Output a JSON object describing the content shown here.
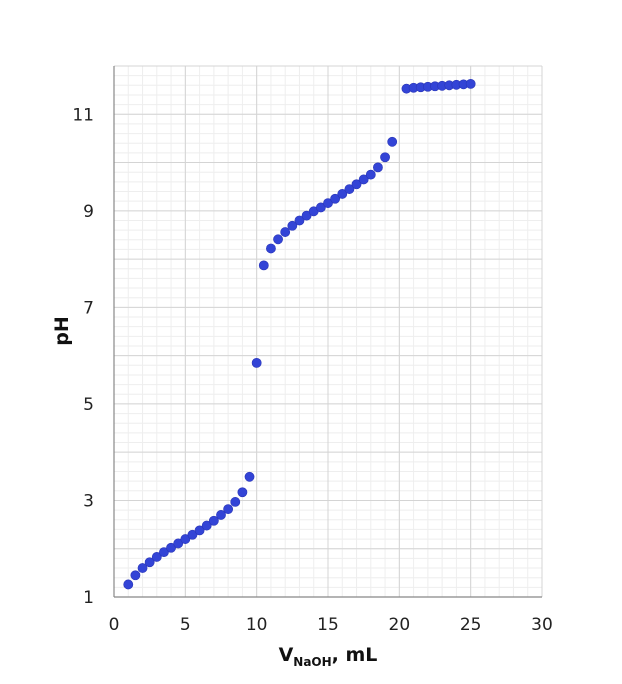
{
  "chart_data": {
    "type": "scatter",
    "title": "",
    "xlabel": {
      "main": "V",
      "subscript": "NaOH",
      "suffix": ", mL"
    },
    "ylabel": "pH",
    "xlim": [
      0,
      30
    ],
    "ylim": [
      1,
      12
    ],
    "x_ticks": [
      "0",
      "5",
      "10",
      "15",
      "20",
      "25",
      "30"
    ],
    "y_ticks": [
      "1",
      "3",
      "5",
      "7",
      "9",
      "11"
    ],
    "grid": true,
    "legend": "none",
    "marker_color": "#3344d6",
    "series": [
      {
        "points": [
          [
            1.0,
            1.26
          ],
          [
            1.5,
            1.45
          ],
          [
            2.0,
            1.6
          ],
          [
            2.5,
            1.72
          ],
          [
            3.0,
            1.83
          ],
          [
            3.5,
            1.93
          ],
          [
            4.0,
            2.02
          ],
          [
            4.5,
            2.11
          ],
          [
            5.0,
            2.2
          ],
          [
            5.5,
            2.29
          ],
          [
            6.0,
            2.38
          ],
          [
            6.5,
            2.48
          ],
          [
            7.0,
            2.58
          ],
          [
            7.5,
            2.7
          ],
          [
            8.0,
            2.82
          ],
          [
            8.5,
            2.97
          ],
          [
            9.0,
            3.17
          ],
          [
            9.5,
            3.49
          ],
          [
            10.0,
            5.85
          ],
          [
            10.5,
            7.87
          ],
          [
            11.0,
            8.22
          ],
          [
            11.5,
            8.41
          ],
          [
            12.0,
            8.56
          ],
          [
            12.5,
            8.69
          ],
          [
            13.0,
            8.8
          ],
          [
            13.5,
            8.9
          ],
          [
            14.0,
            8.99
          ],
          [
            14.5,
            9.07
          ],
          [
            15.0,
            9.16
          ],
          [
            15.5,
            9.25
          ],
          [
            16.0,
            9.35
          ],
          [
            16.5,
            9.45
          ],
          [
            17.0,
            9.55
          ],
          [
            17.5,
            9.65
          ],
          [
            18.0,
            9.75
          ],
          [
            18.5,
            9.9
          ],
          [
            19.0,
            10.11
          ],
          [
            19.5,
            10.43
          ],
          [
            20.5,
            11.53
          ],
          [
            21.0,
            11.55
          ],
          [
            21.5,
            11.56
          ],
          [
            22.0,
            11.57
          ],
          [
            22.5,
            11.58
          ],
          [
            23.0,
            11.59
          ],
          [
            23.5,
            11.6
          ],
          [
            24.0,
            11.61
          ],
          [
            24.5,
            11.62
          ],
          [
            25.0,
            11.63
          ]
        ]
      }
    ]
  }
}
